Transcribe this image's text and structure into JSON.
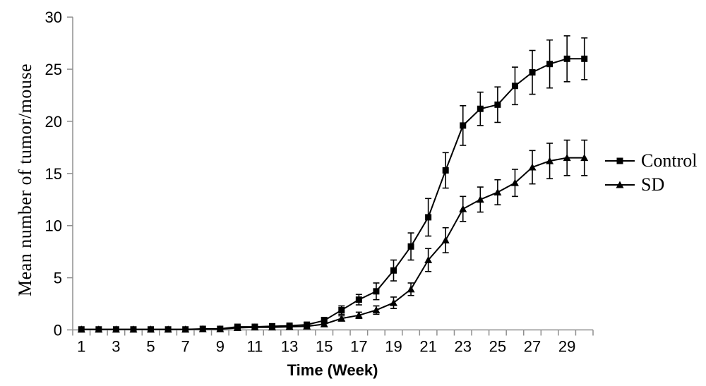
{
  "figure": {
    "background": "#ffffff"
  },
  "chart_data": {
    "type": "line",
    "title": "",
    "xlabel": "Time (Week)",
    "ylabel": "Mean number of tumor/mouse",
    "x": [
      1,
      2,
      3,
      4,
      5,
      6,
      7,
      8,
      9,
      10,
      11,
      12,
      13,
      14,
      15,
      16,
      17,
      18,
      19,
      20,
      21,
      22,
      23,
      24,
      25,
      26,
      27,
      28,
      29,
      30
    ],
    "x_tick_labels": [
      "1",
      "3",
      "5",
      "7",
      "9",
      "11",
      "13",
      "15",
      "17",
      "19",
      "21",
      "23",
      "25",
      "27",
      "29"
    ],
    "x_labeled_weeks": [
      1,
      3,
      5,
      7,
      9,
      11,
      13,
      15,
      17,
      19,
      21,
      23,
      25,
      27,
      29
    ],
    "y_ticks": [
      0,
      5,
      10,
      15,
      20,
      25,
      30
    ],
    "ylim": [
      0,
      30
    ],
    "grid": false,
    "legend_position": "right-middle",
    "axis_color": "#8f8f8f",
    "series_color": "#000000",
    "error_bars": true,
    "series": [
      {
        "name": "Control",
        "marker": "square",
        "color": "#000000",
        "values": [
          0.05,
          0.05,
          0.05,
          0.05,
          0.05,
          0.05,
          0.05,
          0.1,
          0.1,
          0.3,
          0.3,
          0.35,
          0.4,
          0.5,
          0.9,
          1.9,
          2.9,
          3.7,
          5.7,
          8.0,
          10.8,
          15.3,
          19.6,
          21.2,
          21.6,
          23.4,
          24.7,
          25.5,
          26.0,
          26.0
        ],
        "errors": [
          0,
          0,
          0,
          0,
          0,
          0,
          0,
          0,
          0,
          0.1,
          0.1,
          0.1,
          0.15,
          0.2,
          0.3,
          0.4,
          0.5,
          0.8,
          1.0,
          1.3,
          1.8,
          1.7,
          1.9,
          1.6,
          1.7,
          1.8,
          2.1,
          2.3,
          2.2,
          2.0
        ]
      },
      {
        "name": "SD",
        "marker": "triangle",
        "color": "#000000",
        "values": [
          0.05,
          0.05,
          0.05,
          0.05,
          0.05,
          0.05,
          0.05,
          0.08,
          0.08,
          0.2,
          0.25,
          0.25,
          0.3,
          0.35,
          0.55,
          1.1,
          1.4,
          1.9,
          2.6,
          3.9,
          6.7,
          8.6,
          11.6,
          12.5,
          13.2,
          14.1,
          15.6,
          16.2,
          16.5,
          16.5
        ],
        "errors": [
          0,
          0,
          0,
          0,
          0,
          0,
          0,
          0,
          0,
          0.08,
          0.08,
          0.08,
          0.1,
          0.15,
          0.2,
          0.25,
          0.3,
          0.4,
          0.55,
          0.6,
          1.1,
          1.2,
          1.2,
          1.2,
          1.2,
          1.3,
          1.6,
          1.7,
          1.7,
          1.7
        ]
      }
    ]
  }
}
